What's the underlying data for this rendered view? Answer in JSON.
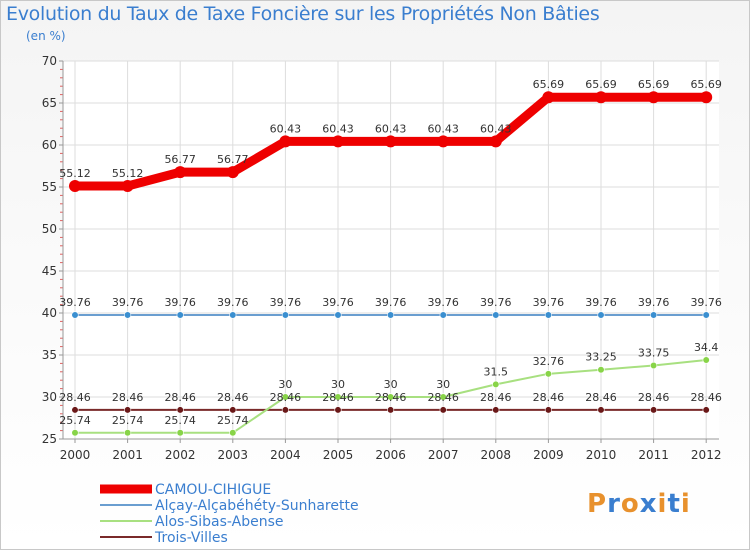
{
  "header": {
    "title": "Evolution du Taux de Taxe Foncière sur les Propriétés Non Bâties",
    "unit": "(en %)"
  },
  "logo": {
    "text": "Proxiti",
    "letters": [
      "P",
      "r",
      "o",
      "x",
      "i",
      "t",
      "i"
    ],
    "colors": [
      "#e8912d",
      "#3a7ecf",
      "#e8912d",
      "#3a7ecf",
      "#e8912d",
      "#3a7ecf",
      "#e8912d"
    ]
  },
  "chart_data": {
    "type": "line",
    "title": "Evolution du Taux de Taxe Foncière sur les Propriétés Non Bâties",
    "ylabel": "(en %)",
    "categories": [
      "2000",
      "2001",
      "2002",
      "2003",
      "2004",
      "2005",
      "2006",
      "2007",
      "2008",
      "2009",
      "2010",
      "2011",
      "2012"
    ],
    "ylim": [
      25,
      70
    ],
    "yticks": [
      25,
      30,
      35,
      40,
      45,
      50,
      55,
      60,
      65,
      70
    ],
    "series": [
      {
        "name": "CAMOU-CIHIGUE",
        "color": "#ee0000",
        "values": [
          55.12,
          55.12,
          56.77,
          56.77,
          60.43,
          60.43,
          60.43,
          60.43,
          60.43,
          65.69,
          65.69,
          65.69,
          65.69
        ],
        "labels": [
          "55.12",
          "55.12",
          "56.77",
          "56.77",
          "60.43",
          "60.43",
          "60.43",
          "60.43",
          "60.43",
          "65.69",
          "65.69",
          "65.69",
          "65.69"
        ]
      },
      {
        "name": "Alçay-Alçabéhéty-Sunharette",
        "color": "#6a9ed0",
        "marker": "#3a8fd0",
        "values": [
          39.76,
          39.76,
          39.76,
          39.76,
          39.76,
          39.76,
          39.76,
          39.76,
          39.76,
          39.76,
          39.76,
          39.76,
          39.76
        ],
        "labels": [
          "39.76",
          "39.76",
          "39.76",
          "39.76",
          "39.76",
          "39.76",
          "39.76",
          "39.76",
          "39.76",
          "39.76",
          "39.76",
          "39.76",
          "39.76"
        ]
      },
      {
        "name": "Alos-Sibas-Abense",
        "color": "#a8e080",
        "marker": "#88d448",
        "values": [
          25.74,
          25.74,
          25.74,
          25.74,
          30,
          30,
          30,
          30,
          31.5,
          32.76,
          33.25,
          33.75,
          34.4
        ],
        "labels": [
          "25.74",
          "25.74",
          "25.74",
          "25.74",
          "30",
          "30",
          "30",
          "30",
          "31.5",
          "32.76",
          "33.25",
          "33.75",
          "34.4"
        ]
      },
      {
        "name": "Trois-Villes",
        "color": "#7a2a2a",
        "marker": "#6a1818",
        "values": [
          28.46,
          28.46,
          28.46,
          28.46,
          28.46,
          28.46,
          28.46,
          28.46,
          28.46,
          28.46,
          28.46,
          28.46,
          28.46
        ],
        "labels": [
          "28.46",
          "28.46",
          "28.46",
          "28.46",
          "28.46",
          "28.46",
          "28.46",
          "28.46",
          "28.46",
          "28.46",
          "28.46",
          "28.46",
          "28.46"
        ]
      }
    ]
  }
}
